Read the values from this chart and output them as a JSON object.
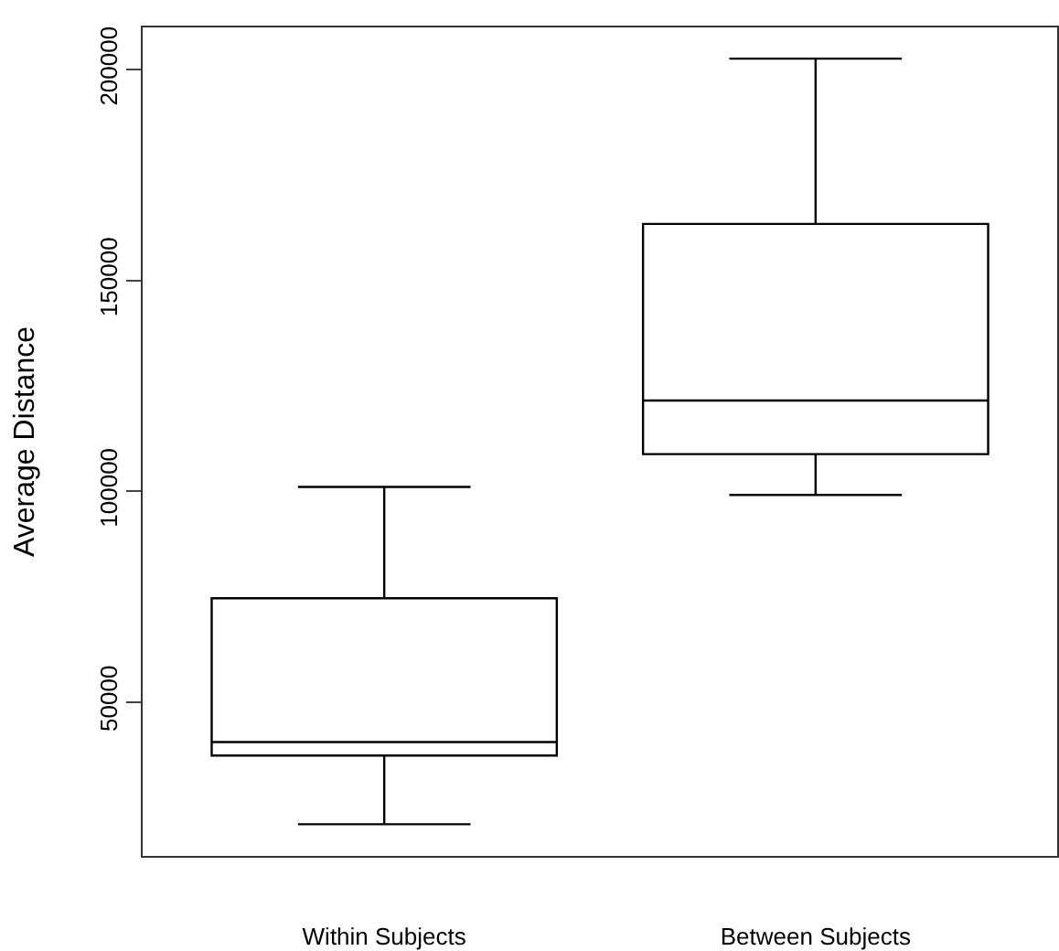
{
  "chart_data": {
    "type": "box",
    "ylabel": "Average Distance",
    "categories": [
      "Within Subjects",
      "Between Subjects"
    ],
    "boxes": [
      {
        "low": 21000,
        "q1": 37300,
        "median": 40500,
        "q3": 74600,
        "high": 101000
      },
      {
        "low": 99100,
        "q1": 108800,
        "median": 121500,
        "q3": 163400,
        "high": 202600
      }
    ],
    "color": "#000000",
    "ylim": [
      13500,
      210000
    ],
    "yticks": [
      50000,
      100000,
      150000,
      200000
    ]
  }
}
